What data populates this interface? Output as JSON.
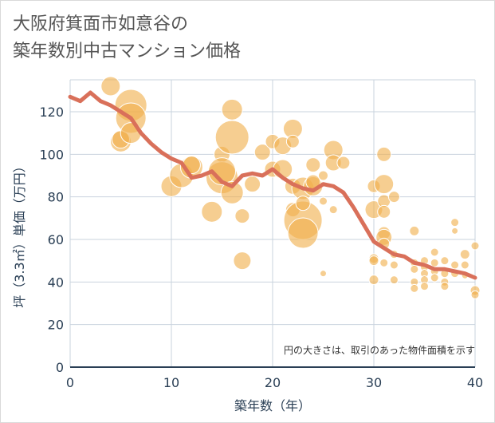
{
  "chart_data": {
    "type": "scatter",
    "title_lines": [
      "大阪府箕面市如意谷の",
      "築年数別中古マンション価格"
    ],
    "xlabel": "築年数（年）",
    "ylabel": "坪（3.3㎡）単価（万円）",
    "xlim": [
      0,
      40
    ],
    "ylim": [
      0,
      135
    ],
    "xticks": [
      "0",
      "10",
      "20",
      "30",
      "40"
    ],
    "yticks": [
      "0",
      "20",
      "40",
      "60",
      "80",
      "100",
      "120"
    ],
    "grid": true,
    "note": "円の大きさは、取引のあった物件面積を示す",
    "colors": {
      "bubble": "#f0b04e",
      "line": "#d9705a",
      "grid": "#c9d3de",
      "text": "#2a3f55"
    },
    "line_series": {
      "x": [
        0,
        1,
        2,
        3,
        4,
        5,
        6,
        7,
        8,
        9,
        10,
        11,
        12,
        13,
        14,
        15,
        16,
        17,
        18,
        19,
        20,
        21,
        22,
        23,
        24,
        25,
        26,
        27,
        28,
        29,
        30,
        31,
        32,
        33,
        34,
        35,
        36,
        37,
        38,
        39,
        40
      ],
      "y": [
        127,
        125,
        129,
        125,
        123,
        120,
        117,
        110,
        105,
        101,
        98,
        96,
        89,
        90,
        92,
        87,
        85,
        90,
        91,
        90,
        93,
        89,
        86,
        84,
        83,
        86,
        85,
        82,
        75,
        67,
        59,
        56,
        53,
        52,
        49,
        48,
        46,
        46,
        45,
        44,
        42
      ]
    },
    "bubbles": [
      {
        "x": 4,
        "y": 132,
        "s": 12
      },
      {
        "x": 5,
        "y": 106,
        "s": 13
      },
      {
        "x": 5,
        "y": 107,
        "s": 11
      },
      {
        "x": 6,
        "y": 123,
        "s": 20
      },
      {
        "x": 6,
        "y": 117,
        "s": 19
      },
      {
        "x": 6,
        "y": 110,
        "s": 13
      },
      {
        "x": 10,
        "y": 85,
        "s": 13
      },
      {
        "x": 11,
        "y": 90,
        "s": 15
      },
      {
        "x": 12,
        "y": 94,
        "s": 14
      },
      {
        "x": 12,
        "y": 95,
        "s": 11
      },
      {
        "x": 14,
        "y": 73,
        "s": 13
      },
      {
        "x": 15,
        "y": 100,
        "s": 10
      },
      {
        "x": 15,
        "y": 89,
        "s": 20
      },
      {
        "x": 15,
        "y": 92,
        "s": 17
      },
      {
        "x": 16,
        "y": 121,
        "s": 13
      },
      {
        "x": 16,
        "y": 108,
        "s": 21
      },
      {
        "x": 16,
        "y": 82,
        "s": 14
      },
      {
        "x": 17,
        "y": 71,
        "s": 9
      },
      {
        "x": 17,
        "y": 50,
        "s": 11
      },
      {
        "x": 18,
        "y": 86,
        "s": 10
      },
      {
        "x": 19,
        "y": 101,
        "s": 10
      },
      {
        "x": 20,
        "y": 106,
        "s": 9
      },
      {
        "x": 20,
        "y": 93,
        "s": 10
      },
      {
        "x": 21,
        "y": 93,
        "s": 12
      },
      {
        "x": 21,
        "y": 104,
        "s": 11
      },
      {
        "x": 22,
        "y": 112,
        "s": 12
      },
      {
        "x": 22,
        "y": 106,
        "s": 8
      },
      {
        "x": 22,
        "y": 85,
        "s": 10
      },
      {
        "x": 22,
        "y": 74,
        "s": 9
      },
      {
        "x": 23,
        "y": 84,
        "s": 14
      },
      {
        "x": 23,
        "y": 69,
        "s": 24
      },
      {
        "x": 23,
        "y": 63,
        "s": 19
      },
      {
        "x": 23,
        "y": 77,
        "s": 9
      },
      {
        "x": 24,
        "y": 95,
        "s": 9
      },
      {
        "x": 24,
        "y": 85,
        "s": 12
      },
      {
        "x": 24,
        "y": 87,
        "s": 9
      },
      {
        "x": 25,
        "y": 90,
        "s": 6
      },
      {
        "x": 25,
        "y": 78,
        "s": 5
      },
      {
        "x": 25,
        "y": 44,
        "s": 4
      },
      {
        "x": 26,
        "y": 102,
        "s": 12
      },
      {
        "x": 26,
        "y": 96,
        "s": 10
      },
      {
        "x": 26,
        "y": 74,
        "s": 5
      },
      {
        "x": 27,
        "y": 96,
        "s": 8
      },
      {
        "x": 30,
        "y": 85,
        "s": 8
      },
      {
        "x": 30,
        "y": 74,
        "s": 11
      },
      {
        "x": 30,
        "y": 51,
        "s": 6
      },
      {
        "x": 30,
        "y": 50,
        "s": 6
      },
      {
        "x": 30,
        "y": 41,
        "s": 6
      },
      {
        "x": 31,
        "y": 100,
        "s": 9
      },
      {
        "x": 31,
        "y": 86,
        "s": 12
      },
      {
        "x": 31,
        "y": 78,
        "s": 8
      },
      {
        "x": 31,
        "y": 73,
        "s": 8
      },
      {
        "x": 31,
        "y": 63,
        "s": 8
      },
      {
        "x": 31,
        "y": 61,
        "s": 10
      },
      {
        "x": 31,
        "y": 58,
        "s": 7
      },
      {
        "x": 31,
        "y": 49,
        "s": 5
      },
      {
        "x": 32,
        "y": 80,
        "s": 7
      },
      {
        "x": 32,
        "y": 53,
        "s": 5
      },
      {
        "x": 32,
        "y": 48,
        "s": 5
      },
      {
        "x": 32,
        "y": 41,
        "s": 5
      },
      {
        "x": 34,
        "y": 64,
        "s": 6
      },
      {
        "x": 34,
        "y": 49,
        "s": 5
      },
      {
        "x": 34,
        "y": 46,
        "s": 5
      },
      {
        "x": 34,
        "y": 40,
        "s": 5
      },
      {
        "x": 34,
        "y": 37,
        "s": 5
      },
      {
        "x": 35,
        "y": 50,
        "s": 5
      },
      {
        "x": 35,
        "y": 47,
        "s": 5
      },
      {
        "x": 35,
        "y": 44,
        "s": 5
      },
      {
        "x": 35,
        "y": 41,
        "s": 5
      },
      {
        "x": 35,
        "y": 38,
        "s": 5
      },
      {
        "x": 36,
        "y": 54,
        "s": 5
      },
      {
        "x": 36,
        "y": 49,
        "s": 5
      },
      {
        "x": 36,
        "y": 45,
        "s": 5
      },
      {
        "x": 36,
        "y": 42,
        "s": 5
      },
      {
        "x": 37,
        "y": 50,
        "s": 5
      },
      {
        "x": 37,
        "y": 44,
        "s": 5
      },
      {
        "x": 37,
        "y": 40,
        "s": 5
      },
      {
        "x": 37,
        "y": 38,
        "s": 5
      },
      {
        "x": 38,
        "y": 68,
        "s": 5
      },
      {
        "x": 38,
        "y": 64,
        "s": 4
      },
      {
        "x": 38,
        "y": 48,
        "s": 5
      },
      {
        "x": 38,
        "y": 44,
        "s": 5
      },
      {
        "x": 39,
        "y": 53,
        "s": 6
      },
      {
        "x": 39,
        "y": 48,
        "s": 5
      },
      {
        "x": 39,
        "y": 43,
        "s": 4
      },
      {
        "x": 40,
        "y": 57,
        "s": 5
      },
      {
        "x": 40,
        "y": 36,
        "s": 6
      },
      {
        "x": 40,
        "y": 34,
        "s": 5
      }
    ]
  }
}
